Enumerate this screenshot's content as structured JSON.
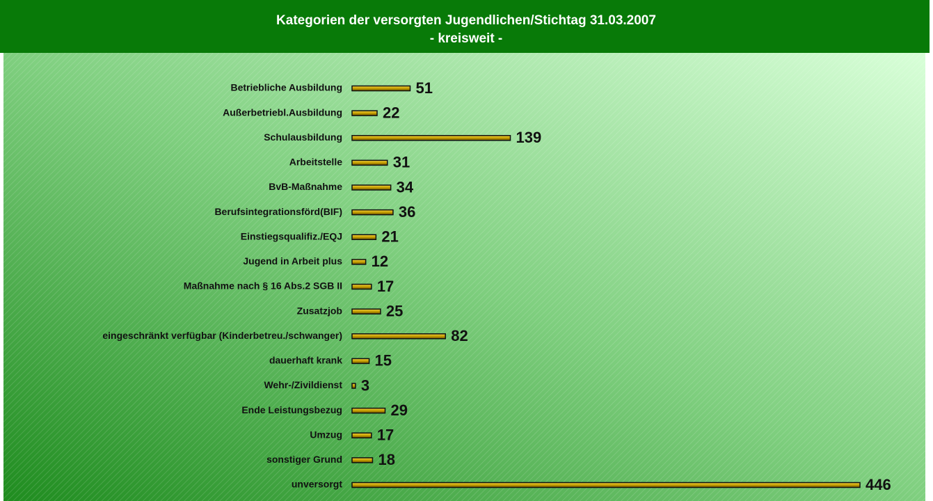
{
  "chart_data": {
    "type": "bar",
    "orientation": "horizontal",
    "title": "Kategorien der versorgten Jugendlichen/Stichtag 31.03.2007",
    "subtitle": "- kreisweit -",
    "categories": [
      "Betriebliche Ausbildung",
      "Außerbetriebl.Ausbildung",
      "Schulausbildung",
      "Arbeitstelle",
      "BvB-Maßnahme",
      "Berufsintegrationsförd(BIF)",
      "Einstiegsqualifiz./EQJ",
      "Jugend in Arbeit plus",
      "Maßnahme nach § 16 Abs.2 SGB II",
      "Zusatzjob",
      "eingeschränkt verfügbar (Kinderbetreu./schwanger)",
      "dauerhaft krank",
      "Wehr-/Zivildienst",
      "Ende Leistungsbezug",
      "Umzug",
      "sonstiger Grund",
      "unversorgt"
    ],
    "values": [
      51,
      22,
      139,
      31,
      34,
      36,
      21,
      12,
      17,
      25,
      82,
      15,
      3,
      29,
      17,
      18,
      446
    ],
    "color": "#c8a000"
  }
}
